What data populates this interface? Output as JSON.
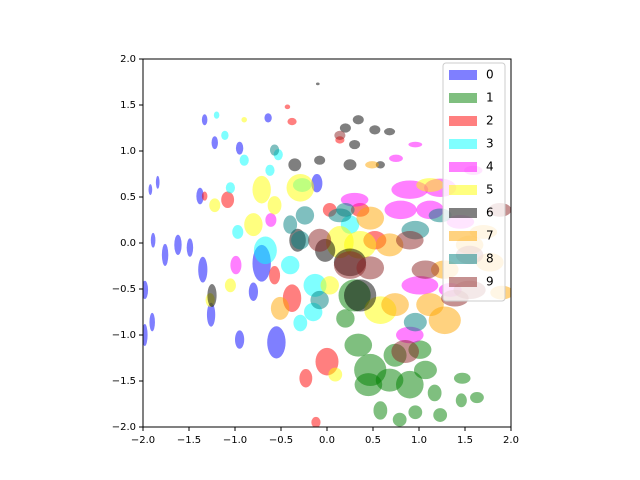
{
  "chart_data": {
    "type": "ellipse-scatter",
    "xlim": [
      -2,
      2
    ],
    "ylim": [
      -2,
      2
    ],
    "xticks": [
      {
        "value": -2,
        "label": "−2.0"
      },
      {
        "value": -1.5,
        "label": "−1.5"
      },
      {
        "value": -1,
        "label": "−1.0"
      },
      {
        "value": -0.5,
        "label": "−0.5"
      },
      {
        "value": 0,
        "label": "0.0"
      },
      {
        "value": 0.5,
        "label": "0.5"
      },
      {
        "value": 1,
        "label": "1.0"
      },
      {
        "value": 1.5,
        "label": "1.5"
      },
      {
        "value": 2,
        "label": "2.0"
      }
    ],
    "yticks": [
      {
        "value": -2,
        "label": "−2.0"
      },
      {
        "value": -1.5,
        "label": "−1.5"
      },
      {
        "value": -1,
        "label": "−1.0"
      },
      {
        "value": -0.5,
        "label": "−0.5"
      },
      {
        "value": 0,
        "label": "0.0"
      },
      {
        "value": 0.5,
        "label": "0.5"
      },
      {
        "value": 1,
        "label": "1.0"
      },
      {
        "value": 1.5,
        "label": "1.5"
      },
      {
        "value": 2,
        "label": "2.0"
      }
    ],
    "opacity": 0.5,
    "legend": "upper right",
    "series": [
      {
        "name": "0",
        "color": "#0000ff",
        "x": [
          -1.92,
          -1.84,
          -1.89,
          -1.76,
          -1.62,
          -1.49,
          -1.98,
          -1.9,
          -1.98,
          -1.35,
          -1.26,
          -0.95,
          -0.55,
          -0.71,
          -1.22,
          -1.33,
          -1.38,
          -0.95,
          -0.8,
          -0.11,
          -0.64
        ],
        "y": [
          0.58,
          0.66,
          0.03,
          -0.13,
          -0.02,
          -0.05,
          -0.51,
          -0.86,
          -1.0,
          -0.29,
          -0.78,
          -1.05,
          -1.08,
          -0.22,
          1.09,
          1.34,
          0.51,
          1.03,
          -0.53,
          0.65,
          1.36
        ],
        "w": [
          0.04,
          0.04,
          0.05,
          0.07,
          0.08,
          0.07,
          0.07,
          0.06,
          0.06,
          0.1,
          0.09,
          0.1,
          0.2,
          0.2,
          0.07,
          0.06,
          0.08,
          0.08,
          0.1,
          0.12,
          0.08
        ],
        "h": [
          0.12,
          0.14,
          0.16,
          0.24,
          0.22,
          0.2,
          0.2,
          0.2,
          0.24,
          0.28,
          0.26,
          0.2,
          0.35,
          0.4,
          0.14,
          0.12,
          0.18,
          0.14,
          0.2,
          0.2,
          0.1
        ]
      },
      {
        "name": "1",
        "color": "#008000",
        "x": [
          0.2,
          0.34,
          0.47,
          0.68,
          0.9,
          1.07,
          0.58,
          0.96,
          1.23,
          1.47,
          1.46,
          1.63,
          0.3,
          1.01,
          0.74,
          1.17,
          0.79,
          0.45
        ],
        "y": [
          -0.82,
          -1.11,
          -1.38,
          -1.49,
          -1.54,
          -1.38,
          -1.82,
          -1.84,
          -1.87,
          -1.47,
          -1.71,
          -1.68,
          -0.57,
          -1.16,
          -1.22,
          -1.63,
          -1.92,
          -1.54
        ],
        "w": [
          0.2,
          0.3,
          0.35,
          0.3,
          0.3,
          0.25,
          0.15,
          0.15,
          0.15,
          0.18,
          0.12,
          0.15,
          0.35,
          0.25,
          0.25,
          0.15,
          0.15,
          0.3
        ],
        "h": [
          0.2,
          0.25,
          0.35,
          0.25,
          0.3,
          0.2,
          0.2,
          0.15,
          0.15,
          0.12,
          0.15,
          0.12,
          0.35,
          0.2,
          0.25,
          0.18,
          0.15,
          0.25
        ]
      },
      {
        "name": "2",
        "color": "#ff0000",
        "x": [
          0,
          -0.23,
          -0.12,
          -0.38,
          -0.57,
          -1.08,
          -0.43,
          -0.38,
          0.14,
          0.36,
          0.52,
          0.03,
          -1.33
        ],
        "y": [
          -1.29,
          -1.47,
          -1.95,
          -0.6,
          -0.35,
          0.47,
          1.48,
          1.32,
          1.12,
          0.36,
          0.03,
          0.36,
          0.51
        ],
        "w": [
          0.25,
          0.14,
          0.1,
          0.2,
          0.12,
          0.14,
          0.06,
          0.1,
          0.1,
          0.2,
          0.25,
          0.15,
          0.06
        ],
        "h": [
          0.3,
          0.2,
          0.12,
          0.3,
          0.2,
          0.18,
          0.05,
          0.08,
          0.08,
          0.15,
          0.2,
          0.15,
          0.1
        ]
      },
      {
        "name": "3",
        "color": "#00ffff",
        "x": [
          -0.4,
          -0.29,
          -0.15,
          -0.67,
          -0.97,
          -1.11,
          -0.9,
          -0.62,
          -1.05,
          -0.13,
          0.25,
          -0.27,
          -1.2,
          -0.53
        ],
        "y": [
          -0.24,
          -0.87,
          -0.75,
          -0.08,
          0.12,
          1.17,
          0.9,
          0.79,
          0.6,
          -0.46,
          0.2,
          0.63,
          1.39,
          0.96
        ],
        "w": [
          0.2,
          0.15,
          0.2,
          0.25,
          0.12,
          0.08,
          0.1,
          0.1,
          0.1,
          0.25,
          0.2,
          0.2,
          0.06,
          0.1
        ],
        "h": [
          0.2,
          0.18,
          0.2,
          0.3,
          0.15,
          0.1,
          0.12,
          0.12,
          0.12,
          0.25,
          0.2,
          0.15,
          0.08,
          0.12
        ]
      },
      {
        "name": "4",
        "color": "#ff00ff",
        "x": [
          0.9,
          1.23,
          0.8,
          1.12,
          1.01,
          0.9,
          0.75,
          0.96,
          -0.99,
          -0.61,
          1.45,
          1.59,
          0.3,
          1.34
        ],
        "y": [
          0.58,
          0.6,
          0.36,
          0.36,
          -0.46,
          -1.0,
          0.92,
          1.07,
          -0.24,
          0.25,
          0.23,
          0.79,
          0.47,
          -0.51
        ],
        "w": [
          0.4,
          0.35,
          0.35,
          0.3,
          0.4,
          0.3,
          0.15,
          0.15,
          0.12,
          0.12,
          0.3,
          0.2,
          0.3,
          0.25
        ],
        "h": [
          0.2,
          0.2,
          0.2,
          0.2,
          0.2,
          0.18,
          0.08,
          0.06,
          0.2,
          0.15,
          0.15,
          0.1,
          0.15,
          0.15
        ]
      },
      {
        "name": "5",
        "color": "#ffff00",
        "x": [
          -0.8,
          -0.71,
          -0.29,
          0.14,
          0.36,
          0.58,
          0.03,
          -0.57,
          -1.05,
          -1.27,
          0.09,
          1.12,
          -0.9,
          -1.22
        ],
        "y": [
          0.2,
          0.58,
          0.6,
          0.01,
          -0.02,
          -0.73,
          -0.46,
          0.41,
          -0.46,
          -0.62,
          -1.43,
          0.63,
          1.34,
          0.41
        ],
        "w": [
          0.2,
          0.2,
          0.3,
          0.3,
          0.35,
          0.35,
          0.2,
          0.15,
          0.12,
          0.1,
          0.15,
          0.3,
          0.06,
          0.12
        ],
        "h": [
          0.25,
          0.3,
          0.3,
          0.35,
          0.3,
          0.3,
          0.2,
          0.2,
          0.15,
          0.15,
          0.15,
          0.15,
          0.06,
          0.15
        ]
      },
      {
        "name": "6",
        "color": "#000000",
        "x": [
          -0.1,
          0.2,
          0.34,
          0.52,
          0.68,
          -0.35,
          -0.08,
          0.25,
          -0.32,
          -0.02,
          0.25,
          0.36,
          -1.25,
          0.58,
          0.3
        ],
        "y": [
          1.73,
          1.25,
          1.34,
          1.23,
          1.21,
          0.85,
          0.9,
          0.85,
          0.03,
          -0.08,
          -0.21,
          -0.57,
          -0.57,
          0.85,
          1.07
        ],
        "w": [
          0.04,
          0.12,
          0.12,
          0.12,
          0.12,
          0.14,
          0.12,
          0.14,
          0.18,
          0.22,
          0.35,
          0.35,
          0.1,
          0.1,
          0.12
        ],
        "h": [
          0.03,
          0.1,
          0.1,
          0.1,
          0.08,
          0.14,
          0.1,
          0.12,
          0.25,
          0.25,
          0.3,
          0.35,
          0.25,
          0.08,
          0.1
        ]
      },
      {
        "name": "7",
        "color": "#ffa500",
        "x": [
          -0.51,
          0.68,
          1.28,
          1.12,
          1.9,
          1.77,
          0.47,
          0.74,
          1.55,
          1.28,
          1.7,
          0.49
        ],
        "y": [
          -0.71,
          -0.02,
          -0.84,
          -0.67,
          -0.54,
          -0.21,
          0.27,
          -0.67,
          -0.02,
          -0.29,
          0.12,
          0.85
        ],
        "w": [
          0.2,
          0.3,
          0.35,
          0.3,
          0.25,
          0.3,
          0.3,
          0.3,
          0.3,
          0.3,
          0.3,
          0.15
        ],
        "h": [
          0.25,
          0.25,
          0.3,
          0.25,
          0.15,
          0.2,
          0.25,
          0.25,
          0.2,
          0.2,
          0.15,
          0.08
        ]
      },
      {
        "name": "8",
        "color": "#008080",
        "x": [
          0.96,
          -0.4,
          -0.24,
          0.2,
          -0.29,
          -0.57,
          0.14,
          0.96,
          1.23,
          -0.08
        ],
        "y": [
          -0.86,
          0.2,
          0.3,
          0.36,
          0.03,
          1.01,
          0.3,
          0.14,
          0.3,
          -0.62
        ],
        "w": [
          0.25,
          0.15,
          0.2,
          0.2,
          0.2,
          0.1,
          0.25,
          0.3,
          0.25,
          0.2
        ],
        "h": [
          0.2,
          0.2,
          0.2,
          0.15,
          0.2,
          0.12,
          0.15,
          0.2,
          0.15,
          0.2
        ]
      },
      {
        "name": "9",
        "color": "#8b2323",
        "x": [
          0.25,
          0.47,
          0.85,
          0.9,
          1.07,
          1.55,
          1.39,
          1.88,
          -0.08,
          1.55,
          0.14
        ],
        "y": [
          -0.24,
          -0.27,
          -1.18,
          0.03,
          -0.29,
          -0.51,
          -0.6,
          0.36,
          0.03,
          -0.13,
          1.17
        ],
        "w": [
          0.35,
          0.3,
          0.3,
          0.3,
          0.3,
          0.35,
          0.3,
          0.25,
          0.25,
          0.3,
          0.12
        ],
        "h": [
          0.3,
          0.25,
          0.25,
          0.2,
          0.2,
          0.2,
          0.18,
          0.15,
          0.25,
          0.2,
          0.1
        ]
      }
    ]
  }
}
